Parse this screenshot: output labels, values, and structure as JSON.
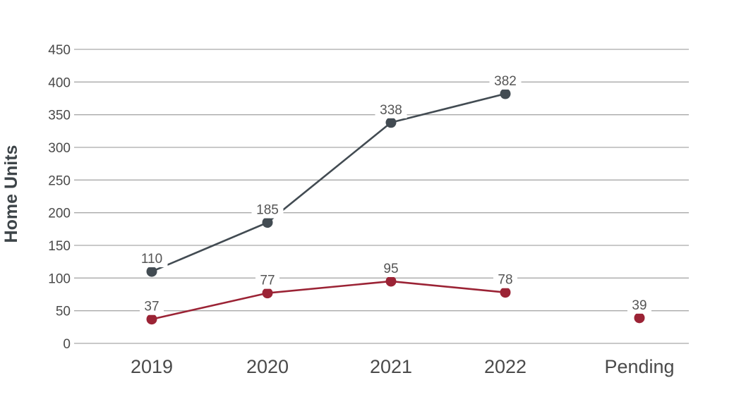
{
  "chart_data": {
    "type": "line",
    "title": "",
    "xlabel": "",
    "ylabel": "Home Units",
    "ylim": [
      0,
      450
    ],
    "yticks": [
      0,
      50,
      100,
      150,
      200,
      250,
      300,
      350,
      400,
      450
    ],
    "categories": [
      "2019",
      "2020",
      "2021",
      "2022",
      "Pending"
    ],
    "grid": true,
    "legend": "none",
    "series": [
      {
        "color": "#424b52",
        "values": [
          110,
          185,
          338,
          382,
          null
        ],
        "labels": [
          "110",
          "185",
          "338",
          "382",
          ""
        ]
      },
      {
        "color": "#9b2335",
        "values": [
          37,
          77,
          95,
          78,
          39
        ],
        "labels": [
          "37",
          "77",
          "95",
          "78",
          "39"
        ]
      }
    ]
  }
}
